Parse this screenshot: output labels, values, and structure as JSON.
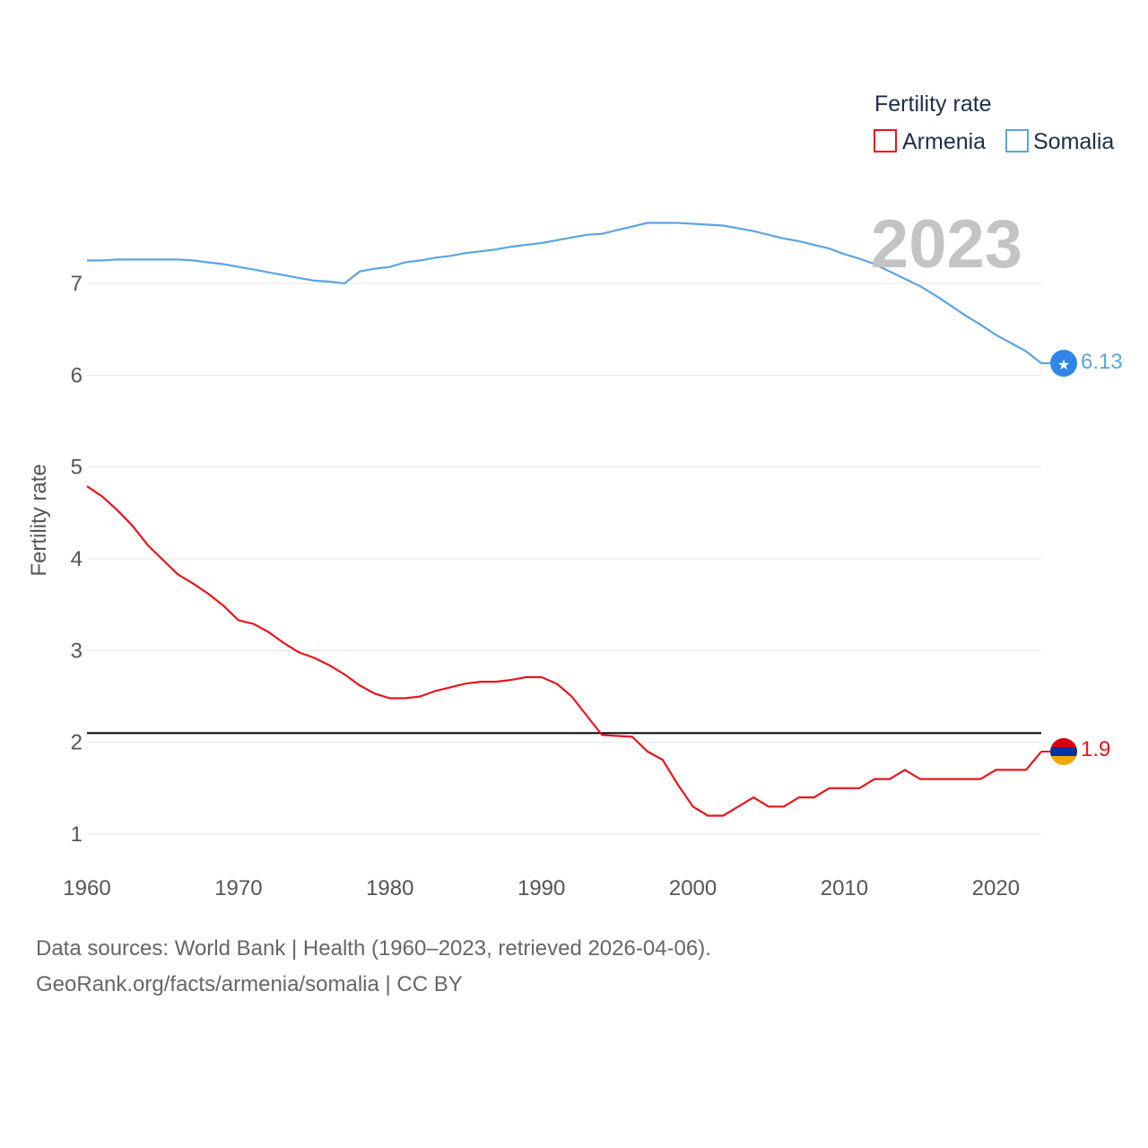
{
  "chart_data": {
    "type": "line",
    "title": "",
    "ylabel": "Fertility rate",
    "xlabel": "",
    "xlim": [
      1960,
      2023
    ],
    "ylim": [
      1,
      7.7
    ],
    "x_ticks": [
      1960,
      1970,
      1980,
      1990,
      2000,
      2010,
      2020
    ],
    "y_ticks": [
      1,
      2,
      3,
      4,
      5,
      6,
      7
    ],
    "reference_line": {
      "value": 2.1,
      "color": "#000000"
    },
    "legend": {
      "title": "Fertility rate",
      "position": "top-right"
    },
    "current_year_label": "2023",
    "x": [
      1960,
      1961,
      1962,
      1963,
      1964,
      1965,
      1966,
      1967,
      1968,
      1969,
      1970,
      1971,
      1972,
      1973,
      1974,
      1975,
      1976,
      1977,
      1978,
      1979,
      1980,
      1981,
      1982,
      1983,
      1984,
      1985,
      1986,
      1987,
      1988,
      1989,
      1990,
      1991,
      1992,
      1993,
      1994,
      1995,
      1996,
      1997,
      1998,
      1999,
      2000,
      2001,
      2002,
      2003,
      2004,
      2005,
      2006,
      2007,
      2008,
      2009,
      2010,
      2011,
      2012,
      2013,
      2014,
      2015,
      2016,
      2017,
      2018,
      2019,
      2020,
      2021,
      2022,
      2023
    ],
    "series": [
      {
        "name": "Armenia",
        "color": "#e8151b",
        "end_label": "1.9",
        "values": [
          4.79,
          4.68,
          4.53,
          4.36,
          4.15,
          3.99,
          3.83,
          3.73,
          3.62,
          3.49,
          3.33,
          3.29,
          3.2,
          3.08,
          2.98,
          2.92,
          2.84,
          2.74,
          2.62,
          2.53,
          2.48,
          2.48,
          2.5,
          2.56,
          2.6,
          2.64,
          2.66,
          2.66,
          2.68,
          2.71,
          2.71,
          2.64,
          2.5,
          2.29,
          2.08,
          2.07,
          2.06,
          1.9,
          1.81,
          1.54,
          1.3,
          1.2,
          1.2,
          1.3,
          1.4,
          1.3,
          1.3,
          1.4,
          1.4,
          1.5,
          1.5,
          1.5,
          1.6,
          1.6,
          1.7,
          1.6,
          1.6,
          1.6,
          1.6,
          1.6,
          1.7,
          1.7,
          1.7,
          1.9
        ]
      },
      {
        "name": "Somalia",
        "color": "#5ba4e5",
        "end_label": "6.13",
        "values": [
          7.25,
          7.25,
          7.26,
          7.26,
          7.26,
          7.26,
          7.26,
          7.25,
          7.23,
          7.21,
          7.18,
          7.15,
          7.12,
          7.09,
          7.06,
          7.03,
          7.02,
          7.0,
          7.13,
          7.16,
          7.18,
          7.23,
          7.25,
          7.28,
          7.3,
          7.33,
          7.35,
          7.37,
          7.4,
          7.42,
          7.44,
          7.47,
          7.5,
          7.53,
          7.54,
          7.58,
          7.62,
          7.66,
          7.66,
          7.66,
          7.65,
          7.64,
          7.63,
          7.6,
          7.57,
          7.53,
          7.49,
          7.46,
          7.42,
          7.38,
          7.32,
          7.27,
          7.21,
          7.13,
          7.05,
          6.97,
          6.87,
          6.76,
          6.65,
          6.55,
          6.44,
          6.35,
          6.26,
          6.13
        ]
      }
    ]
  },
  "footer": {
    "line1": "Data sources: World Bank | Health (1960–2023, retrieved 2026-04-06).",
    "line2": "GeoRank.org/facts/armenia/somalia | CC BY"
  }
}
